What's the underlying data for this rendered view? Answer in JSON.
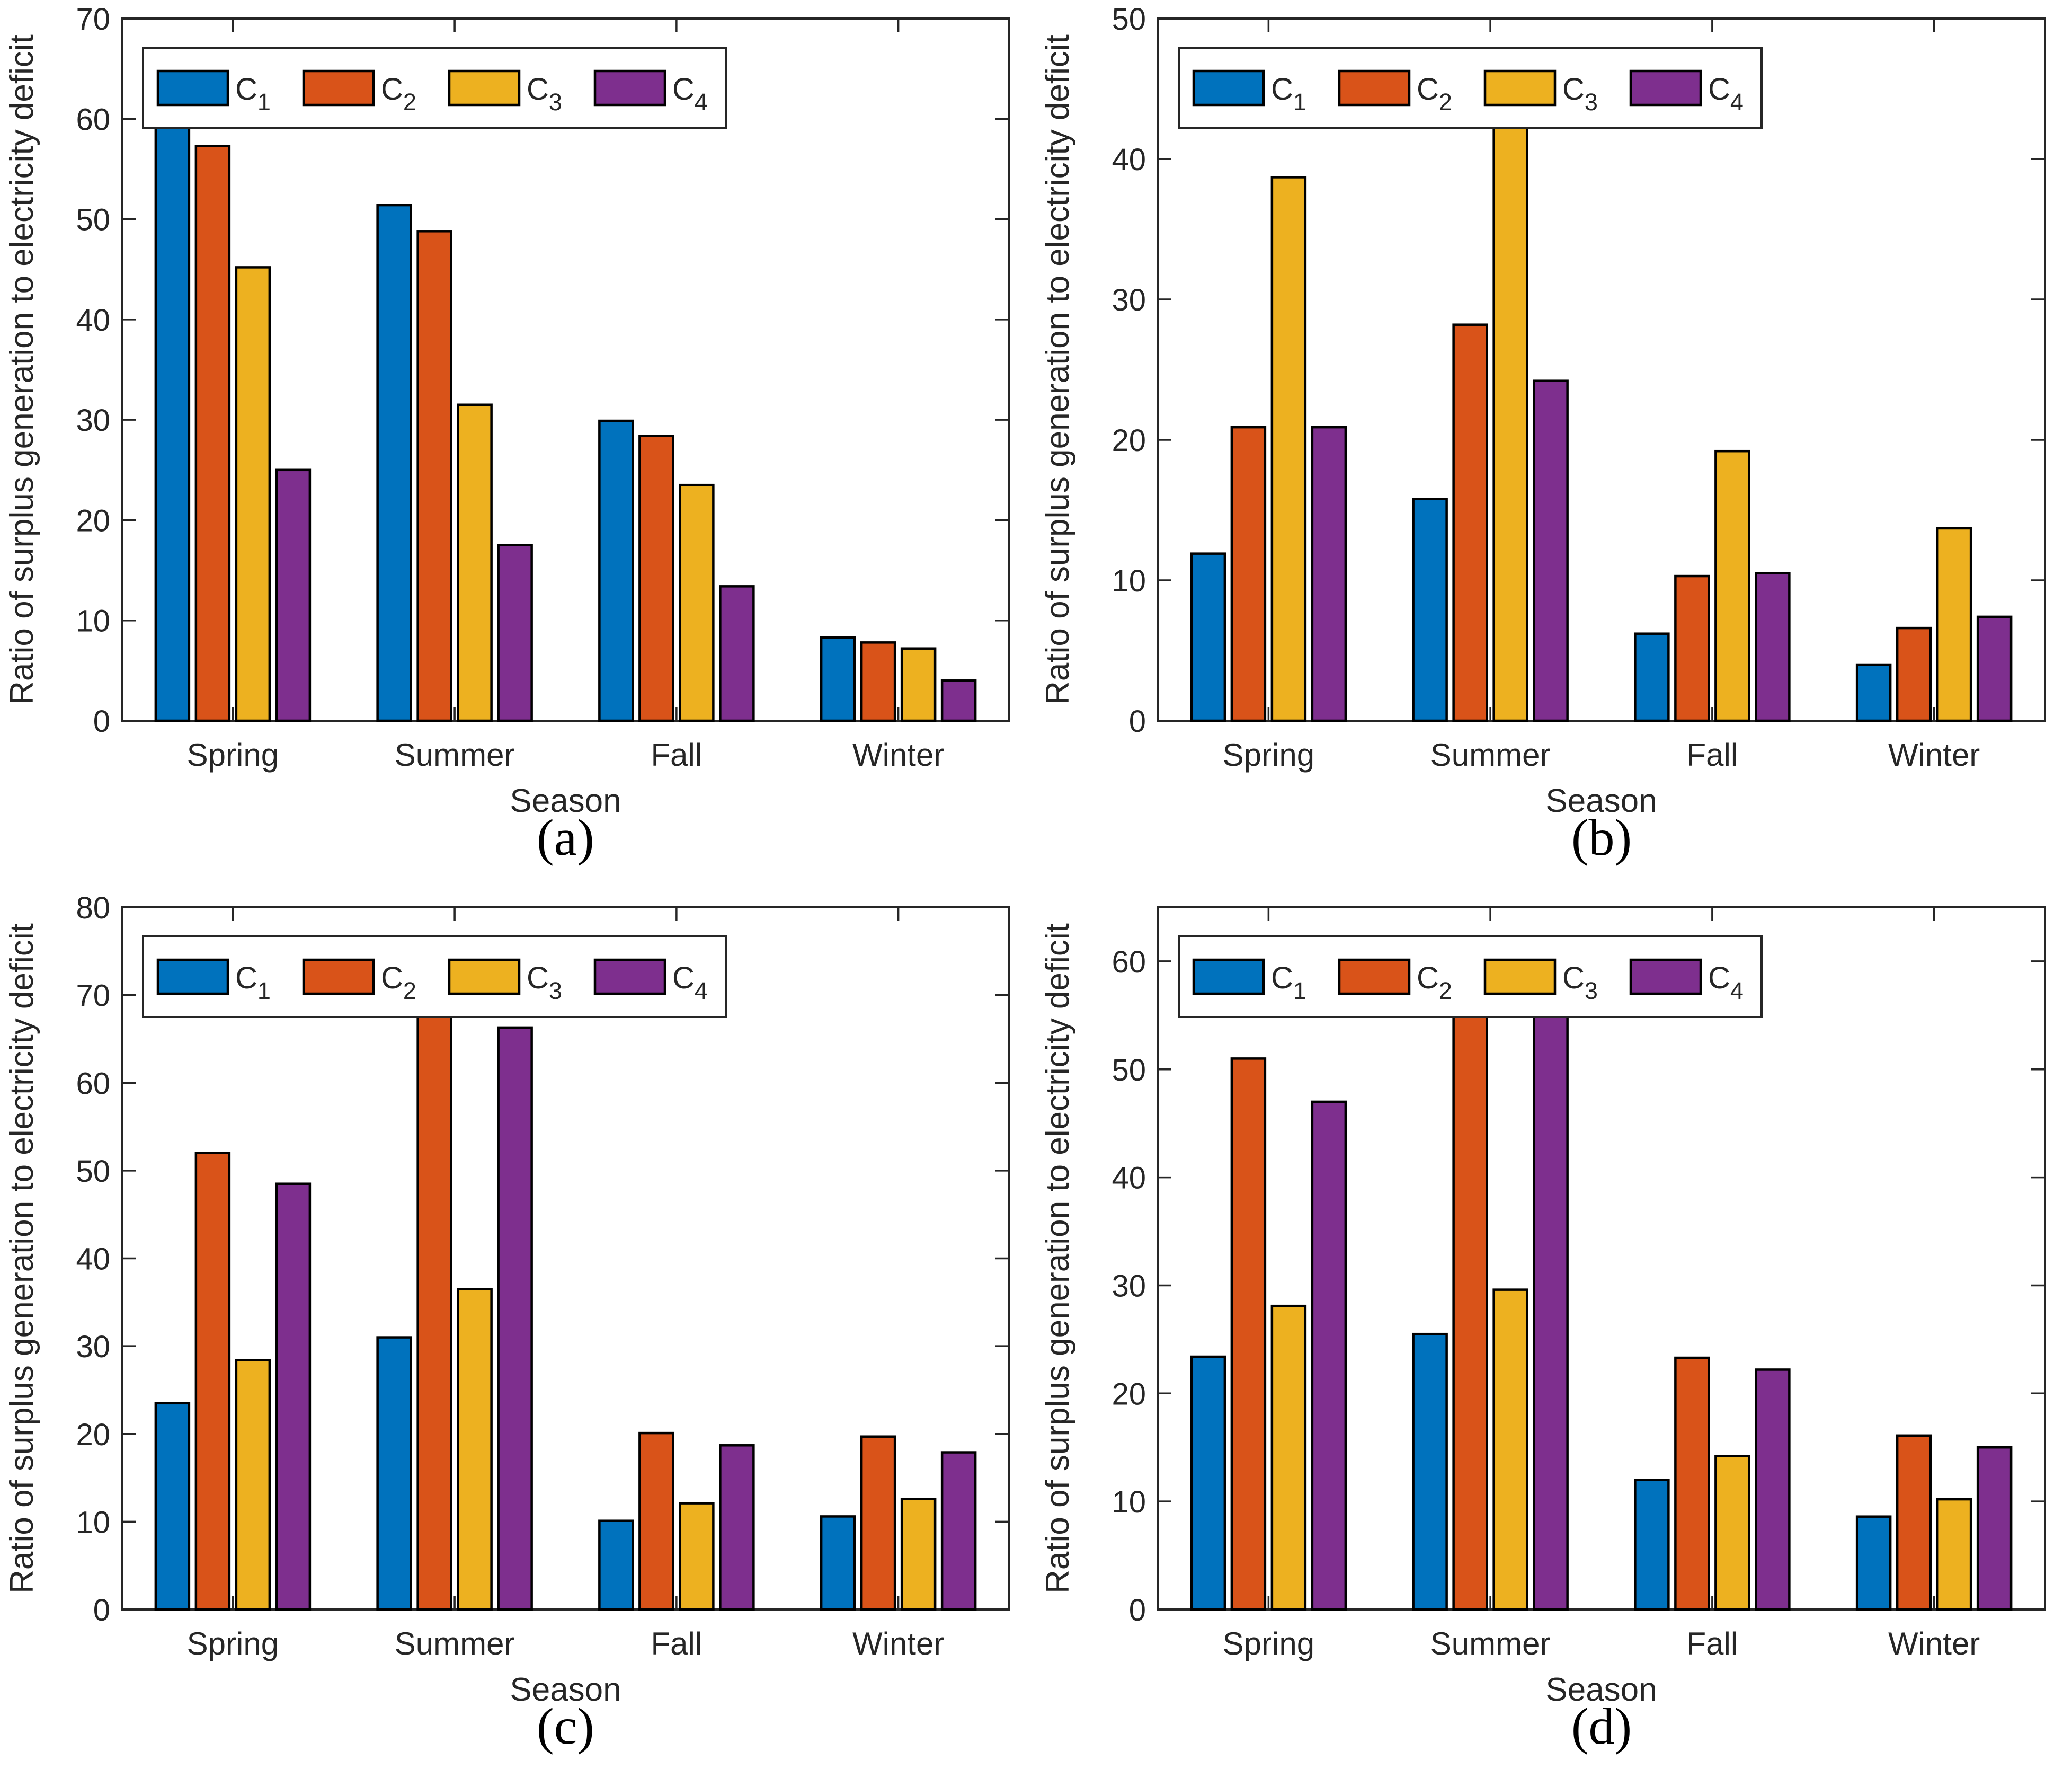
{
  "figure": {
    "background": "#ffffff",
    "axis_color": "#262626",
    "text_color": "#262626",
    "bar_edge_color": "#000000",
    "series_colors": [
      "#0072BD",
      "#D95319",
      "#EDB120",
      "#7E2F8E"
    ]
  },
  "legend": {
    "entries": [
      {
        "base": "C",
        "sub": "1"
      },
      {
        "base": "C",
        "sub": "2"
      },
      {
        "base": "C",
        "sub": "3"
      },
      {
        "base": "C",
        "sub": "4"
      }
    ]
  },
  "chart_data": [
    {
      "type": "bar",
      "panel": "a",
      "caption": "(a)",
      "title": "",
      "xlabel": "Season",
      "ylabel": "Ratio of surplus generation to electricity deficit",
      "categories": [
        "Spring",
        "Summer",
        "Fall",
        "Winter"
      ],
      "ylim": [
        0,
        70
      ],
      "yticks": [
        0,
        10,
        20,
        30,
        40,
        50,
        60,
        70
      ],
      "grid": false,
      "legend_position": "top-left-horizontal",
      "series": [
        {
          "name": "C1",
          "values": [
            60.3,
            51.4,
            29.9,
            8.3
          ]
        },
        {
          "name": "C2",
          "values": [
            57.3,
            48.8,
            28.4,
            7.8
          ]
        },
        {
          "name": "C3",
          "values": [
            45.2,
            31.5,
            23.5,
            7.2
          ]
        },
        {
          "name": "C4",
          "values": [
            25.0,
            17.5,
            13.4,
            4.0
          ]
        }
      ]
    },
    {
      "type": "bar",
      "panel": "b",
      "caption": "(b)",
      "title": "",
      "xlabel": "Season",
      "ylabel": "Ratio of surplus generation to electricity deficit",
      "categories": [
        "Spring",
        "Summer",
        "Fall",
        "Winter"
      ],
      "ylim": [
        0,
        50
      ],
      "yticks": [
        0,
        10,
        20,
        30,
        40,
        50
      ],
      "grid": false,
      "legend_position": "top-left-horizontal",
      "series": [
        {
          "name": "C1",
          "values": [
            11.9,
            15.8,
            6.2,
            4.0
          ]
        },
        {
          "name": "C2",
          "values": [
            20.9,
            28.2,
            10.3,
            6.6
          ]
        },
        {
          "name": "C3",
          "values": [
            38.7,
            43.2,
            19.2,
            13.7
          ]
        },
        {
          "name": "C4",
          "values": [
            20.9,
            24.2,
            10.5,
            7.4
          ]
        }
      ]
    },
    {
      "type": "bar",
      "panel": "c",
      "caption": "(c)",
      "title": "",
      "xlabel": "Season",
      "ylabel": "Ratio of surplus generation to electricity deficit",
      "categories": [
        "Spring",
        "Summer",
        "Fall",
        "Winter"
      ],
      "ylim": [
        0,
        80
      ],
      "yticks": [
        0,
        10,
        20,
        30,
        40,
        50,
        60,
        70,
        80
      ],
      "grid": false,
      "legend_position": "top-left-horizontal",
      "series": [
        {
          "name": "C1",
          "values": [
            23.5,
            31.0,
            10.1,
            10.6
          ]
        },
        {
          "name": "C2",
          "values": [
            52.0,
            68.1,
            20.1,
            19.7
          ]
        },
        {
          "name": "C3",
          "values": [
            28.4,
            36.5,
            12.1,
            12.6
          ]
        },
        {
          "name": "C4",
          "values": [
            48.5,
            66.3,
            18.7,
            17.9
          ]
        }
      ]
    },
    {
      "type": "bar",
      "panel": "d",
      "caption": "(d)",
      "title": "",
      "xlabel": "Season",
      "ylabel": "Ratio of surplus generation to electricity deficit",
      "categories": [
        "Spring",
        "Summer",
        "Fall",
        "Winter"
      ],
      "ylim": [
        0,
        65
      ],
      "yticks": [
        0,
        10,
        20,
        30,
        40,
        50,
        60
      ],
      "grid": false,
      "legend_position": "top-left-horizontal",
      "series": [
        {
          "name": "C1",
          "values": [
            23.4,
            25.5,
            12.0,
            8.6
          ]
        },
        {
          "name": "C2",
          "values": [
            51.0,
            57.5,
            23.3,
            16.1
          ]
        },
        {
          "name": "C3",
          "values": [
            28.1,
            29.6,
            14.2,
            10.2
          ]
        },
        {
          "name": "C4",
          "values": [
            47.0,
            56.3,
            22.2,
            15.0
          ]
        }
      ]
    }
  ]
}
